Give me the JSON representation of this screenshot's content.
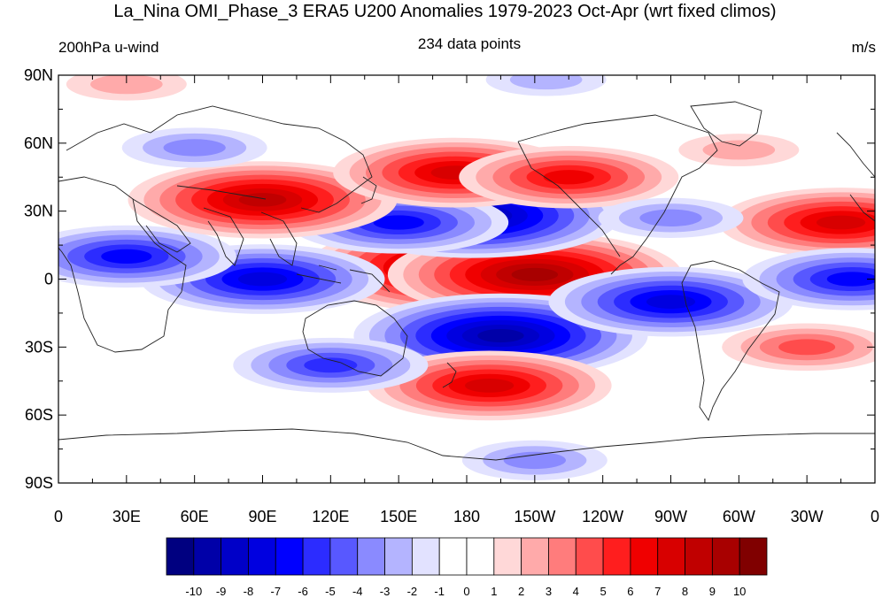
{
  "title": "La_Nina OMI_Phase_3 ERA5 U200 Anomalies 1979-2023 Oct-Apr (wrt fixed climos)",
  "left_subtitle": "200hPa u-wind",
  "center_subtitle": "234 data points",
  "right_subtitle": "m/s",
  "axes": {
    "lat_ticks": [
      {
        "lat": 90,
        "label": "90N"
      },
      {
        "lat": 60,
        "label": "60N"
      },
      {
        "lat": 30,
        "label": "30N"
      },
      {
        "lat": 0,
        "label": "0"
      },
      {
        "lat": -30,
        "label": "30S"
      },
      {
        "lat": -60,
        "label": "60S"
      },
      {
        "lat": -90,
        "label": "90S"
      }
    ],
    "lon_ticks": [
      {
        "lon": 0,
        "label": "0"
      },
      {
        "lon": 30,
        "label": "30E"
      },
      {
        "lon": 60,
        "label": "60E"
      },
      {
        "lon": 90,
        "label": "90E"
      },
      {
        "lon": 120,
        "label": "120E"
      },
      {
        "lon": 150,
        "label": "150E"
      },
      {
        "lon": 180,
        "label": "180"
      },
      {
        "lon": 210,
        "label": "150W"
      },
      {
        "lon": 240,
        "label": "120W"
      },
      {
        "lon": 270,
        "label": "90W"
      },
      {
        "lon": 300,
        "label": "60W"
      },
      {
        "lon": 330,
        "label": "30W"
      },
      {
        "lon": 360,
        "label": "0"
      }
    ]
  },
  "colorbar": {
    "colors": [
      "#000080",
      "#0000a8",
      "#0000c8",
      "#0000e0",
      "#0000ff",
      "#2c2cff",
      "#5858ff",
      "#8a8aff",
      "#b4b4ff",
      "#e2e2ff",
      "#ffffff",
      "#ffffff",
      "#ffd8d8",
      "#ffaaaa",
      "#ff7c7c",
      "#ff4c4c",
      "#ff1e1e",
      "#f00000",
      "#d80000",
      "#c00000",
      "#a80000",
      "#800000"
    ],
    "labels": [
      "-10",
      "-9",
      "-8",
      "-7",
      "-6",
      "-5",
      "-4",
      "-3",
      "-2",
      "-1",
      "0",
      "1",
      "2",
      "3",
      "4",
      "5",
      "6",
      "7",
      "8",
      "9",
      "10"
    ]
  },
  "chart_data": {
    "type": "heatmap",
    "variable": "200hPa u-wind anomaly",
    "units": "m/s",
    "lon_range": [
      0,
      360
    ],
    "lat_range": [
      -90,
      90
    ],
    "levels": [
      -10,
      -9,
      -8,
      -7,
      -6,
      -5,
      -4,
      -3,
      -2,
      -1,
      0,
      1,
      2,
      3,
      4,
      5,
      6,
      7,
      8,
      9,
      10
    ],
    "anomaly_centers": [
      {
        "lon": 180,
        "lat": 5,
        "value": 10
      },
      {
        "lon": 210,
        "lat": 2,
        "value": 9
      },
      {
        "lon": 183,
        "lat": 28,
        "value": -9
      },
      {
        "lon": 150,
        "lat": 25,
        "value": -6
      },
      {
        "lon": 195,
        "lat": -25,
        "value": -9
      },
      {
        "lon": 90,
        "lat": 0,
        "value": -7
      },
      {
        "lon": 30,
        "lat": 10,
        "value": -6
      },
      {
        "lon": 90,
        "lat": 35,
        "value": 8
      },
      {
        "lon": 175,
        "lat": 47,
        "value": 7
      },
      {
        "lon": 225,
        "lat": 45,
        "value": 6
      },
      {
        "lon": 190,
        "lat": -47,
        "value": 7
      },
      {
        "lon": 270,
        "lat": -10,
        "value": -7
      },
      {
        "lon": 345,
        "lat": 25,
        "value": 7
      },
      {
        "lon": 350,
        "lat": 0,
        "value": -6
      },
      {
        "lon": 330,
        "lat": -30,
        "value": 4
      },
      {
        "lon": 120,
        "lat": -38,
        "value": -5
      },
      {
        "lon": 60,
        "lat": 58,
        "value": -3
      },
      {
        "lon": 215,
        "lat": 88,
        "value": -2
      },
      {
        "lon": 30,
        "lat": 86,
        "value": 2
      },
      {
        "lon": 210,
        "lat": -80,
        "value": -3
      },
      {
        "lon": 300,
        "lat": 57,
        "value": 2
      },
      {
        "lon": 270,
        "lat": 27,
        "value": -3
      }
    ]
  }
}
